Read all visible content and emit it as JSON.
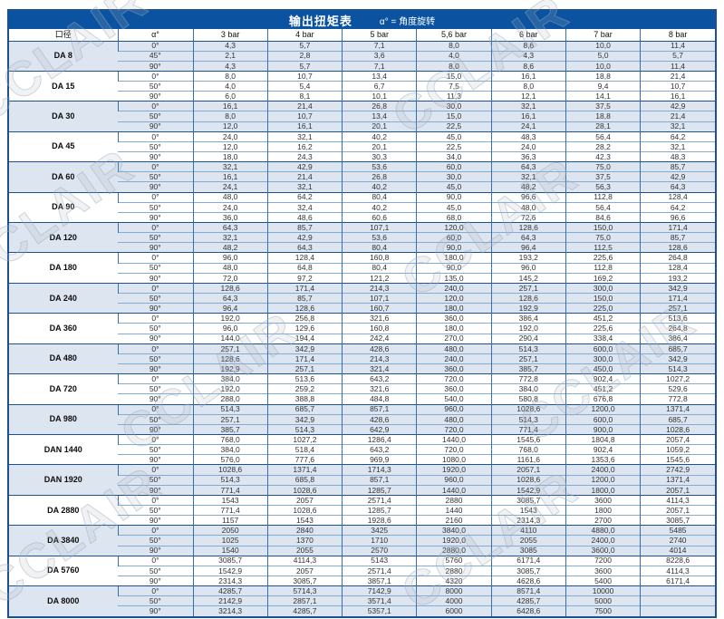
{
  "title": {
    "text": "输出扭矩表",
    "note": "α° = 角度旋转"
  },
  "watermark": {
    "text": "CCLAIR"
  },
  "colors": {
    "title_bg": "#0b53a0",
    "border_dark": "#1b5190",
    "border_mid": "#366fae",
    "border_light": "#85abd3",
    "row_shade": "#dde5f1"
  },
  "table": {
    "columns": [
      "口径",
      "α°",
      "3 bar",
      "4 bar",
      "5 bar",
      "5,6 bar",
      "6 bar",
      "7 bar",
      "8 bar"
    ],
    "groups": [
      {
        "size": "DA 8",
        "shaded": true,
        "rows": [
          {
            "angle": "0°",
            "values": [
              "4,3",
              "5,7",
              "7,1",
              "8,0",
              "8,6",
              "10,0",
              "11,4"
            ]
          },
          {
            "angle": "45°",
            "values": [
              "2,1",
              "2,8",
              "3,6",
              "4,0",
              "4,3",
              "5,0",
              "5,7"
            ]
          },
          {
            "angle": "90°",
            "values": [
              "4,3",
              "5,7",
              "7,1",
              "8,0",
              "8,6",
              "10,0",
              "11,4"
            ]
          }
        ]
      },
      {
        "size": "DA 15",
        "shaded": false,
        "rows": [
          {
            "angle": "0°",
            "values": [
              "8,0",
              "10,7",
              "13,4",
              "15,0",
              "16,1",
              "18,8",
              "21,4"
            ]
          },
          {
            "angle": "50°",
            "values": [
              "4,0",
              "5,4",
              "6,7",
              "7,5",
              "8,0",
              "9,4",
              "10,7"
            ]
          },
          {
            "angle": "90°",
            "values": [
              "6,0",
              "8,1",
              "10,1",
              "11,3",
              "12,1",
              "14,1",
              "16,1"
            ]
          }
        ]
      },
      {
        "size": "DA 30",
        "shaded": true,
        "rows": [
          {
            "angle": "0°",
            "values": [
              "16,1",
              "21,4",
              "26,8",
              "30,0",
              "32,1",
              "37,5",
              "42,9"
            ]
          },
          {
            "angle": "50°",
            "values": [
              "8,0",
              "10,7",
              "13,4",
              "15,0",
              "16,1",
              "18,8",
              "21,4"
            ]
          },
          {
            "angle": "90°",
            "values": [
              "12,0",
              "16,1",
              "20,1",
              "22,5",
              "24,1",
              "28,1",
              "32,1"
            ]
          }
        ]
      },
      {
        "size": "DA 45",
        "shaded": false,
        "rows": [
          {
            "angle": "0°",
            "values": [
              "24,0",
              "32,1",
              "40,2",
              "45,0",
              "48,3",
              "56,4",
              "64,2"
            ]
          },
          {
            "angle": "50°",
            "values": [
              "12,0",
              "16,2",
              "20,1",
              "22,5",
              "24,0",
              "28,2",
              "32,1"
            ]
          },
          {
            "angle": "90°",
            "values": [
              "18,0",
              "24,3",
              "30,3",
              "34,0",
              "36,3",
              "42,3",
              "48,3"
            ]
          }
        ]
      },
      {
        "size": "DA 60",
        "shaded": true,
        "rows": [
          {
            "angle": "0°",
            "values": [
              "32,1",
              "42,9",
              "53,6",
              "60,0",
              "64,3",
              "75,0",
              "85,7"
            ]
          },
          {
            "angle": "50°",
            "values": [
              "16,1",
              "21,4",
              "26,8",
              "30,0",
              "32,1",
              "37,5",
              "42,9"
            ]
          },
          {
            "angle": "90°",
            "values": [
              "24,1",
              "32,1",
              "40,2",
              "45,0",
              "48,2",
              "56,3",
              "64,3"
            ]
          }
        ]
      },
      {
        "size": "DA 90",
        "shaded": false,
        "rows": [
          {
            "angle": "0°",
            "values": [
              "48,0",
              "64,2",
              "80,4",
              "90,0",
              "96,6",
              "112,8",
              "128,4"
            ]
          },
          {
            "angle": "50°",
            "values": [
              "24,0",
              "32,4",
              "40,2",
              "45,0",
              "48,0",
              "56,4",
              "64,2"
            ]
          },
          {
            "angle": "90°",
            "values": [
              "36,0",
              "48,6",
              "60,6",
              "68,0",
              "72,6",
              "84,6",
              "96,6"
            ]
          }
        ]
      },
      {
        "size": "DA 120",
        "shaded": true,
        "rows": [
          {
            "angle": "0°",
            "values": [
              "64,3",
              "85,7",
              "107,1",
              "120,0",
              "128,6",
              "150,0",
              "171,4"
            ]
          },
          {
            "angle": "50°",
            "values": [
              "32,1",
              "42,9",
              "53,6",
              "60,0",
              "64,3",
              "75,0",
              "85,7"
            ]
          },
          {
            "angle": "90°",
            "values": [
              "48,2",
              "64,3",
              "80,4",
              "90,0",
              "96,4",
              "112,5",
              "128,6"
            ]
          }
        ]
      },
      {
        "size": "DA 180",
        "shaded": false,
        "rows": [
          {
            "angle": "0°",
            "values": [
              "96,0",
              "128,4",
              "160,8",
              "180,0",
              "193,2",
              "225,6",
              "264,8"
            ]
          },
          {
            "angle": "50°",
            "values": [
              "48,0",
              "64,8",
              "80,4",
              "90,0",
              "96,0",
              "112,8",
              "128,4"
            ]
          },
          {
            "angle": "90°",
            "values": [
              "72,0",
              "97,2",
              "121,2",
              "135,0",
              "145,2",
              "169,2",
              "193,2"
            ]
          }
        ]
      },
      {
        "size": "DA 240",
        "shaded": true,
        "rows": [
          {
            "angle": "0°",
            "values": [
              "128,6",
              "171,4",
              "214,3",
              "240,0",
              "257,1",
              "300,0",
              "342,9"
            ]
          },
          {
            "angle": "50°",
            "values": [
              "64,3",
              "85,7",
              "107,1",
              "120,0",
              "128,6",
              "150,0",
              "171,4"
            ]
          },
          {
            "angle": "90°",
            "values": [
              "96,4",
              "128,6",
              "160,7",
              "180,0",
              "192,9",
              "225,0",
              "257,1"
            ]
          }
        ]
      },
      {
        "size": "DA 360",
        "shaded": false,
        "rows": [
          {
            "angle": "0°",
            "values": [
              "192,0",
              "256,8",
              "321,6",
              "360,0",
              "386,4",
              "451,2",
              "513,6"
            ]
          },
          {
            "angle": "50°",
            "values": [
              "96,0",
              "129,6",
              "160,8",
              "180,0",
              "192,0",
              "225,6",
              "264,8"
            ]
          },
          {
            "angle": "90°",
            "values": [
              "144,0",
              "194,4",
              "242,4",
              "270,0",
              "290,4",
              "338,4",
              "386,4"
            ]
          }
        ]
      },
      {
        "size": "DA 480",
        "shaded": true,
        "rows": [
          {
            "angle": "0°",
            "values": [
              "257,1",
              "342,9",
              "428,6",
              "480,0",
              "514,3",
              "600,0",
              "685,7"
            ]
          },
          {
            "angle": "50°",
            "values": [
              "128,6",
              "171,4",
              "214,3",
              "240,0",
              "257,1",
              "300,0",
              "342,9"
            ]
          },
          {
            "angle": "90°",
            "values": [
              "192,9",
              "257,1",
              "321,4",
              "360,0",
              "385,7",
              "450,0",
              "514,3"
            ]
          }
        ]
      },
      {
        "size": "DA 720",
        "shaded": false,
        "rows": [
          {
            "angle": "0°",
            "values": [
              "384,0",
              "513,6",
              "643,2",
              "720,0",
              "772,8",
              "902,4",
              "1027,2"
            ]
          },
          {
            "angle": "50°",
            "values": [
              "192,0",
              "259,2",
              "321,6",
              "360,0",
              "384,0",
              "451,2",
              "529,6"
            ]
          },
          {
            "angle": "90°",
            "values": [
              "288,0",
              "388,8",
              "484,8",
              "540,0",
              "580,8",
              "676,8",
              "772,8"
            ]
          }
        ]
      },
      {
        "size": "DA 980",
        "shaded": true,
        "rows": [
          {
            "angle": "0°",
            "values": [
              "514,3",
              "685,7",
              "857,1",
              "960,0",
              "1028,6",
              "1200,0",
              "1371,4"
            ]
          },
          {
            "angle": "50°",
            "values": [
              "257,1",
              "342,9",
              "428,6",
              "480,0",
              "514,3",
              "600,0",
              "685,7"
            ]
          },
          {
            "angle": "90°",
            "values": [
              "385,7",
              "514,3",
              "642,9",
              "720,0",
              "771,4",
              "900,0",
              "1028,6"
            ]
          }
        ]
      },
      {
        "size": "DAN 1440",
        "shaded": false,
        "rows": [
          {
            "angle": "0°",
            "values": [
              "768,0",
              "1027,2",
              "1286,4",
              "1440,0",
              "1545,6",
              "1804,8",
              "2057,4"
            ]
          },
          {
            "angle": "50°",
            "values": [
              "384,0",
              "518,4",
              "643,2",
              "720,0",
              "768,0",
              "902,4",
              "1059,2"
            ]
          },
          {
            "angle": "90°",
            "values": [
              "576,0",
              "777,6",
              "969,9",
              "1080,0",
              "1161,6",
              "1353,6",
              "1545,6"
            ]
          }
        ]
      },
      {
        "size": "DAN 1920",
        "shaded": true,
        "rows": [
          {
            "angle": "0°",
            "values": [
              "1028,6",
              "1371,4",
              "1714,3",
              "1920,0",
              "2057,1",
              "2400,0",
              "2742,9"
            ]
          },
          {
            "angle": "50°",
            "values": [
              "514,3",
              "685,8",
              "857,1",
              "960,0",
              "1028,6",
              "1200,0",
              "1371,4"
            ]
          },
          {
            "angle": "90°",
            "values": [
              "771,4",
              "1028,6",
              "1285,7",
              "1440,0",
              "1542,9",
              "1800,0",
              "2057,1"
            ]
          }
        ]
      },
      {
        "size": "DA 2880",
        "shaded": false,
        "rows": [
          {
            "angle": "0°",
            "values": [
              "1543",
              "2057",
              "2571,4",
              "2880",
              "3085,7",
              "3600",
              "4114,3"
            ]
          },
          {
            "angle": "50°",
            "values": [
              "771,4",
              "1028,6",
              "1285,7",
              "1440",
              "1543",
              "1800",
              "2057,1"
            ]
          },
          {
            "angle": "90°",
            "values": [
              "1157",
              "1543",
              "1928,6",
              "2160",
              "2314,3",
              "2700",
              "3085,7"
            ]
          }
        ]
      },
      {
        "size": "DA 3840",
        "shaded": true,
        "rows": [
          {
            "angle": "0°",
            "values": [
              "2050",
              "2840",
              "3425",
              "3840,0",
              "4110",
              "4880,0",
              "5485"
            ]
          },
          {
            "angle": "50°",
            "values": [
              "1025",
              "1370",
              "1710",
              "1920,0",
              "2055",
              "2400,0",
              "2740"
            ]
          },
          {
            "angle": "90°",
            "values": [
              "1540",
              "2055",
              "2570",
              "2880,0",
              "3085",
              "3600,0",
              "4014"
            ]
          }
        ]
      },
      {
        "size": "DA 5760",
        "shaded": false,
        "rows": [
          {
            "angle": "0°",
            "values": [
              "3085,7",
              "4114,3",
              "5143",
              "5760",
              "6171,4",
              "7200",
              "8228,6"
            ]
          },
          {
            "angle": "50°",
            "values": [
              "1542,9",
              "2057",
              "2571,4",
              "2880",
              "3085,7",
              "3600",
              "4114,3"
            ]
          },
          {
            "angle": "90°",
            "values": [
              "2314,3",
              "3085,7",
              "3857,1",
              "4320",
              "4628,6",
              "5400",
              "6171,4"
            ]
          }
        ]
      },
      {
        "size": "DA 8000",
        "shaded": true,
        "rows": [
          {
            "angle": "0°",
            "values": [
              "4285,7",
              "5714,3",
              "7142,9",
              "8000",
              "8571,4",
              "10000",
              ""
            ]
          },
          {
            "angle": "50°",
            "values": [
              "2142,9",
              "2857,1",
              "3571,4",
              "4000",
              "4285,7",
              "5000",
              ""
            ]
          },
          {
            "angle": "90°",
            "values": [
              "3214,3",
              "4285,7",
              "5357,1",
              "6000",
              "6428,6",
              "7500",
              ""
            ]
          }
        ]
      }
    ]
  }
}
